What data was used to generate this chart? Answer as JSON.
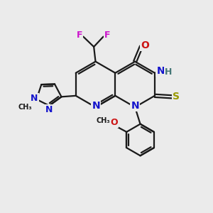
{
  "background_color": "#ebebeb",
  "bond_color": "#1a1a1a",
  "bond_width": 1.6,
  "atom_colors": {
    "C": "#1a1a1a",
    "N": "#1414cc",
    "O": "#cc1414",
    "F": "#cc14cc",
    "S": "#999900",
    "H": "#447777"
  },
  "fig_width": 3.0,
  "fig_height": 3.0,
  "dpi": 100
}
